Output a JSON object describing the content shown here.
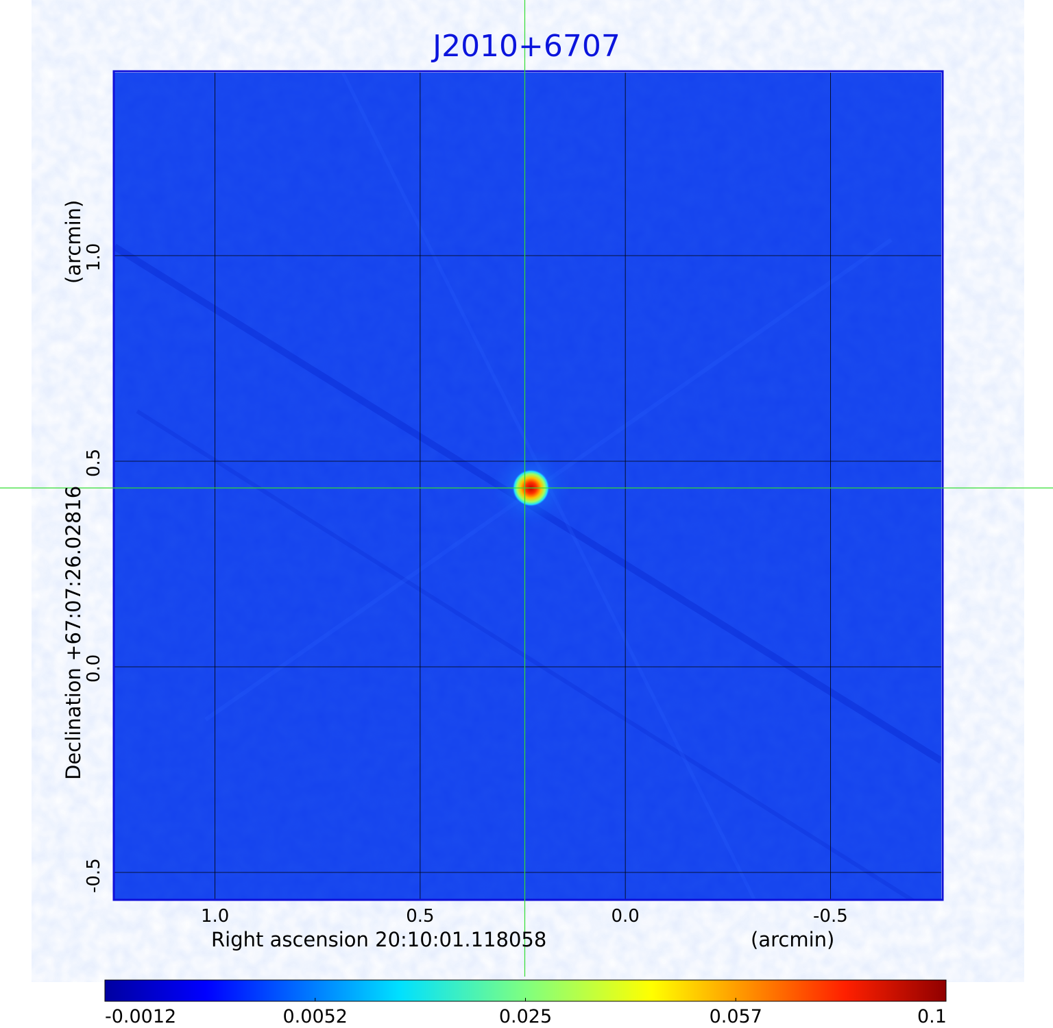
{
  "chart_data": {
    "type": "heatmap",
    "title": "J2010+6707",
    "xlabel": "Right ascension  20:10:01.118058",
    "xunit": "(arcmin)",
    "ylabel": "Declination  +67:07:26.02816",
    "yunit": "(arcmin)",
    "x_ticks": [
      "1.0",
      "0.5",
      "0.0",
      "-0.5"
    ],
    "x_tick_values": [
      1.0,
      0.5,
      0.0,
      -0.5
    ],
    "y_ticks": [
      "1.0",
      "0.5",
      "0.0",
      "-0.5"
    ],
    "y_tick_values": [
      1.0,
      0.5,
      0.0,
      -0.5
    ],
    "xlim": [
      1.245,
      -0.77
    ],
    "ylim": [
      -0.565,
      1.445
    ],
    "grid": true,
    "crosshair": {
      "x": 0.245,
      "y": 0.435
    },
    "source": {
      "x": 0.23,
      "y": 0.435,
      "peak": 0.1
    },
    "colorbar": {
      "ticks": [
        "-0.0012",
        "0.0052",
        "0.025",
        "0.057",
        "0.1"
      ],
      "min": -0.0012,
      "max": 0.1,
      "colormap": "jet"
    },
    "colors": {
      "title": "#0a14dc",
      "frame": "#1010d8",
      "grid": "#000000",
      "crosshair": "#33dd33",
      "background": "#1040f0"
    }
  }
}
